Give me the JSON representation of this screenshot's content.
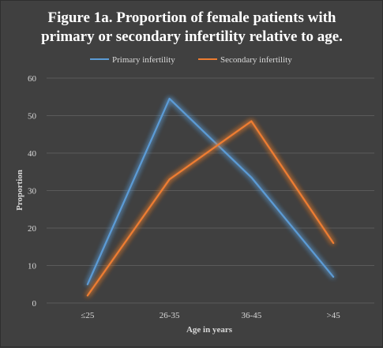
{
  "chart_data": {
    "type": "line",
    "title_line1": "Figure 1a. Proportion of female patients with",
    "title_line2": "primary or secondary infertility relative to age.",
    "xlabel": "Age in years",
    "ylabel": "Proportion",
    "categories": [
      "≤25",
      "26-35",
      "36-45",
      ">45"
    ],
    "ylim": [
      0,
      60
    ],
    "yticks": [
      0,
      10,
      20,
      30,
      40,
      50,
      60
    ],
    "grid": "horizontal",
    "legend_position": "top",
    "series": [
      {
        "name": "Primary infertility",
        "color": "#5b9bd5",
        "values": [
          5,
          54.5,
          33.5,
          7
        ]
      },
      {
        "name": "Secondary infertility",
        "color": "#ed7d31",
        "values": [
          2,
          33,
          48.5,
          16
        ]
      }
    ]
  }
}
